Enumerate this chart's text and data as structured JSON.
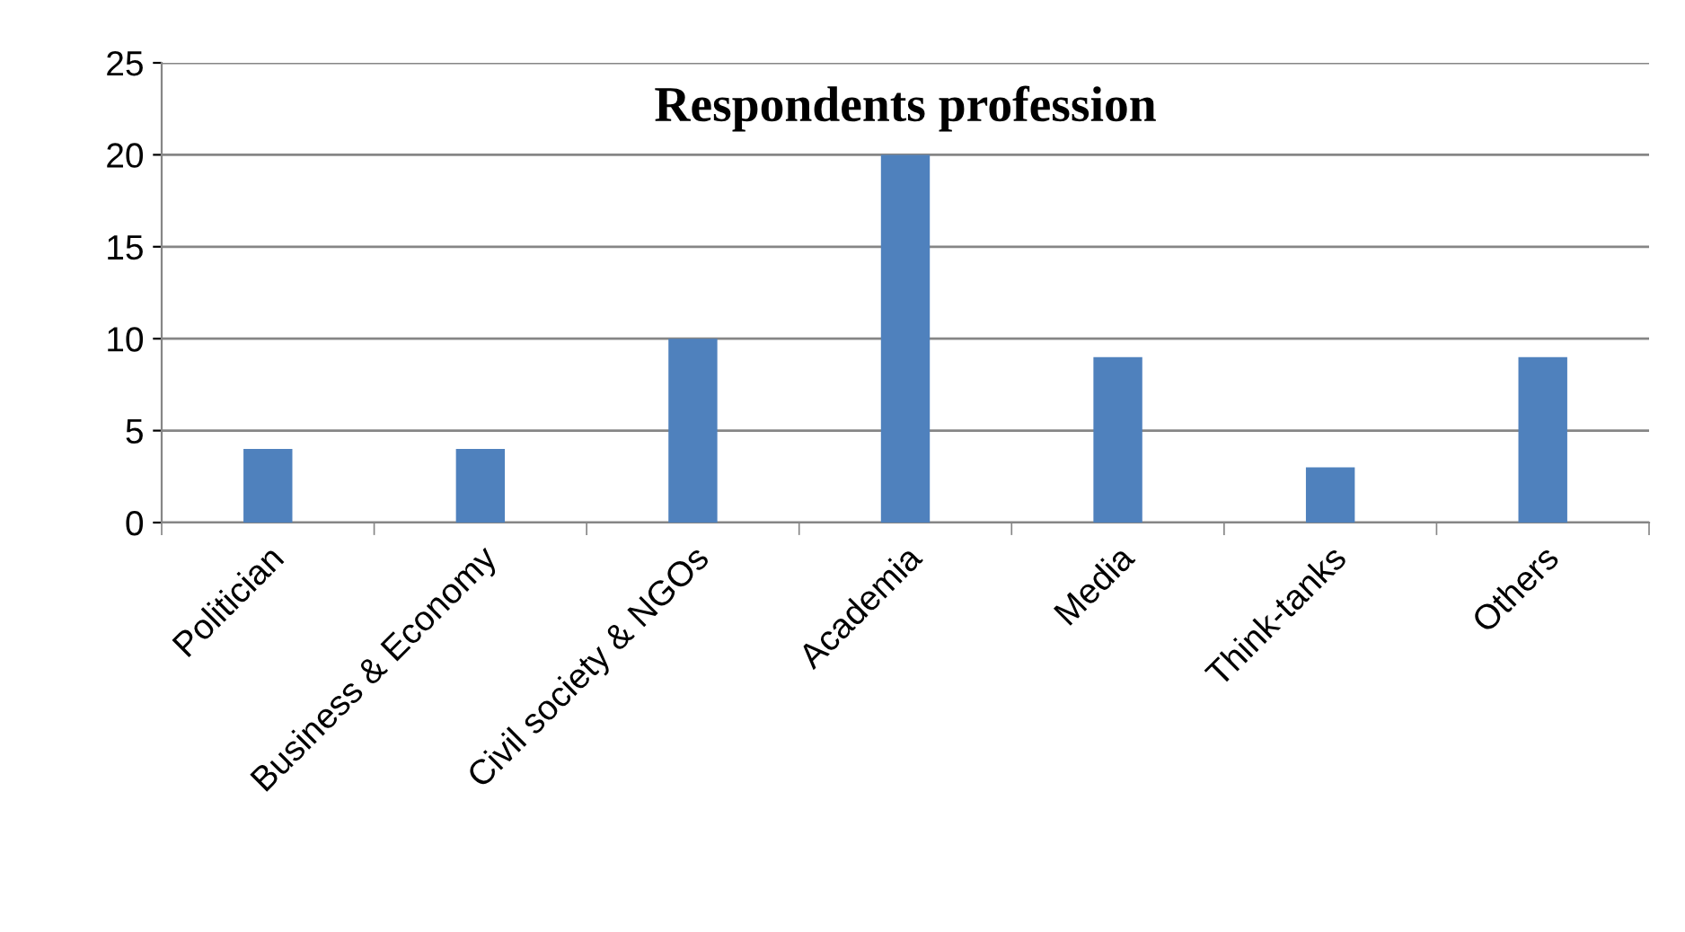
{
  "chart_data": {
    "type": "bar",
    "title": "Respondents profession",
    "categories": [
      "Politician",
      "Business & Economy",
      "Civil society & NGOs",
      "Academia",
      "Media",
      "Think-tanks",
      "Others"
    ],
    "values": [
      4,
      4,
      10,
      20,
      9,
      3,
      9
    ],
    "color": "#4f81bd",
    "ylim": [
      0,
      25
    ],
    "yticks": [
      0,
      5,
      10,
      15,
      20,
      25
    ],
    "grid": "y",
    "legend": false
  }
}
